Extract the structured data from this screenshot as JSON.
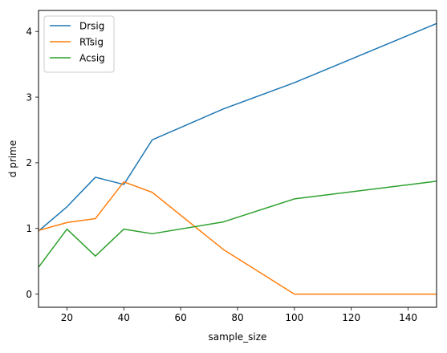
{
  "chart_data": {
    "type": "line",
    "title": "",
    "xlabel": "sample_size",
    "ylabel": "d prime",
    "xlim": [
      10,
      150
    ],
    "ylim": [
      -0.2,
      4.32
    ],
    "xticks": [
      20,
      40,
      60,
      80,
      100,
      120,
      140
    ],
    "yticks": [
      0,
      1,
      2,
      3,
      4
    ],
    "grid": false,
    "legend_position": "top-left",
    "series": [
      {
        "name": "Drsig",
        "color": "#1f77b4",
        "x": [
          10,
          20,
          30,
          40,
          50,
          75,
          100,
          150
        ],
        "values": [
          0.96,
          1.33,
          1.78,
          1.67,
          2.35,
          2.82,
          3.22,
          4.12
        ]
      },
      {
        "name": "RTsig",
        "color": "#ff7f0e",
        "x": [
          10,
          20,
          30,
          40,
          50,
          75,
          100,
          150
        ],
        "values": [
          0.97,
          1.09,
          1.15,
          1.71,
          1.55,
          0.68,
          0.0,
          0.0
        ]
      },
      {
        "name": "Acsig",
        "color": "#2ca02c",
        "x": [
          10,
          20,
          30,
          40,
          50,
          75,
          100,
          150
        ],
        "values": [
          0.41,
          0.99,
          0.58,
          0.99,
          0.92,
          1.1,
          1.45,
          1.72
        ]
      }
    ]
  }
}
